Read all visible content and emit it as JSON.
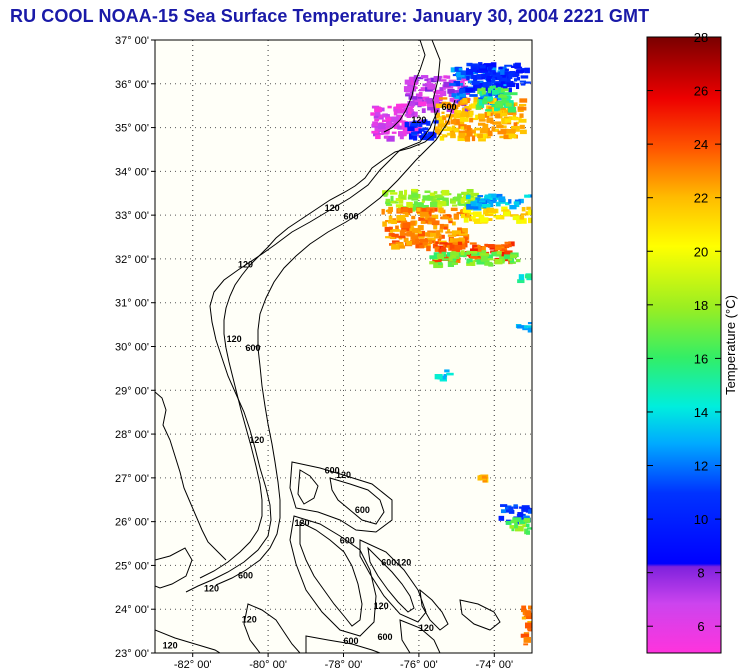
{
  "title": "RU COOL  NOAA-15  Sea Surface Temperature:  January 30, 2004 2221 GMT",
  "map": {
    "lat_range": [
      23,
      37
    ],
    "lon_range": [
      -83,
      -73
    ],
    "lat_labels": [
      "23° 00'",
      "24° 00'",
      "25° 00'",
      "26° 00'",
      "27° 00'",
      "28° 00'",
      "29° 00'",
      "30° 00'",
      "31° 00'",
      "32° 00'",
      "33° 00'",
      "34° 00'",
      "35° 00'",
      "36° 00'",
      "37° 00'"
    ],
    "lon_labels": [
      "-82° 00'",
      "-80° 00'",
      "-78° 00'",
      "-76° 00'",
      "-74° 00'"
    ],
    "lon_values": [
      -82,
      -80,
      -78,
      -76,
      -74
    ],
    "isobath_labels": [
      {
        "text": "120",
        "lon": -80.6,
        "lat": 31.8
      },
      {
        "text": "120",
        "lon": -78.3,
        "lat": 33.1
      },
      {
        "text": "600",
        "lon": -77.8,
        "lat": 32.9
      },
      {
        "text": "120",
        "lon": -80.9,
        "lat": 30.1
      },
      {
        "text": "600",
        "lon": -80.4,
        "lat": 29.9
      },
      {
        "text": "120",
        "lon": -80.3,
        "lat": 27.8
      },
      {
        "text": "600",
        "lon": -78.3,
        "lat": 27.1
      },
      {
        "text": "120",
        "lon": -78.0,
        "lat": 27.0
      },
      {
        "text": "600",
        "lon": -77.5,
        "lat": 26.2
      },
      {
        "text": "120",
        "lon": -79.1,
        "lat": 25.9
      },
      {
        "text": "600",
        "lon": -77.9,
        "lat": 25.5
      },
      {
        "text": "600",
        "lon": -76.8,
        "lat": 25.0
      },
      {
        "text": "120",
        "lon": -76.4,
        "lat": 25.0
      },
      {
        "text": "600",
        "lon": -80.6,
        "lat": 24.7
      },
      {
        "text": "120",
        "lon": -81.5,
        "lat": 24.4
      },
      {
        "text": "120",
        "lon": -77.0,
        "lat": 24.0
      },
      {
        "text": "120",
        "lon": -80.5,
        "lat": 23.7
      },
      {
        "text": "600",
        "lon": -77.8,
        "lat": 23.2
      },
      {
        "text": "600",
        "lon": -76.9,
        "lat": 23.3
      },
      {
        "text": "120",
        "lon": -75.8,
        "lat": 23.5
      },
      {
        "text": "120",
        "lon": -82.6,
        "lat": 23.1
      },
      {
        "text": "120",
        "lon": -76.0,
        "lat": 35.1
      },
      {
        "text": "600",
        "lon": -75.2,
        "lat": 35.4
      }
    ],
    "sst_patches": [
      {
        "lon1": -76.4,
        "lat1": 36.2,
        "lon2": -74.8,
        "lat2": 35.4,
        "temp": 7
      },
      {
        "lon1": -75.2,
        "lat1": 36.4,
        "lon2": -73.8,
        "lat2": 35.6,
        "temp": 12
      },
      {
        "lon1": -74.8,
        "lat1": 36.5,
        "lon2": -73.2,
        "lat2": 35.9,
        "temp": 10
      },
      {
        "lon1": -75.6,
        "lat1": 35.7,
        "lon2": -73.3,
        "lat2": 34.8,
        "temp": 22
      },
      {
        "lon1": -77.3,
        "lat1": 35.6,
        "lon2": -76.0,
        "lat2": 34.8,
        "temp": 6
      },
      {
        "lon1": -76.4,
        "lat1": 35.2,
        "lon2": -75.6,
        "lat2": 34.8,
        "temp": 10
      },
      {
        "lon1": -74.5,
        "lat1": 36.0,
        "lon2": -73.6,
        "lat2": 35.4,
        "temp": 16
      },
      {
        "lon1": -77.0,
        "lat1": 33.6,
        "lon2": -74.5,
        "lat2": 33.2,
        "temp": 18
      },
      {
        "lon1": -77.0,
        "lat1": 33.2,
        "lon2": -74.8,
        "lat2": 32.3,
        "temp": 23
      },
      {
        "lon1": -74.9,
        "lat1": 33.2,
        "lon2": -73.1,
        "lat2": 32.9,
        "temp": 21
      },
      {
        "lon1": -74.8,
        "lat1": 33.5,
        "lon2": -73.1,
        "lat2": 33.2,
        "temp": 13
      },
      {
        "lon1": -75.7,
        "lat1": 32.4,
        "lon2": -73.6,
        "lat2": 32.0,
        "temp": 24
      },
      {
        "lon1": -75.8,
        "lat1": 32.2,
        "lon2": -73.4,
        "lat2": 31.9,
        "temp": 17
      },
      {
        "lon1": -73.4,
        "lat1": 31.7,
        "lon2": -73.1,
        "lat2": 31.5,
        "temp": 15
      },
      {
        "lon1": -73.5,
        "lat1": 30.6,
        "lon2": -73.1,
        "lat2": 30.4,
        "temp": 13
      },
      {
        "lon1": -75.6,
        "lat1": 29.5,
        "lon2": -75.2,
        "lat2": 29.3,
        "temp": 14
      },
      {
        "lon1": -73.9,
        "lat1": 26.4,
        "lon2": -73.1,
        "lat2": 26.0,
        "temp": 11
      },
      {
        "lon1": -73.7,
        "lat1": 26.1,
        "lon2": -73.1,
        "lat2": 25.8,
        "temp": 17
      },
      {
        "lon1": -73.3,
        "lat1": 24.1,
        "lon2": -73.1,
        "lat2": 23.1,
        "temp": 23
      },
      {
        "lon1": -74.5,
        "lat1": 27.1,
        "lon2": -74.3,
        "lat2": 26.9,
        "temp": 22
      }
    ]
  },
  "colorbar": {
    "label": "Temperature (°C)",
    "min": 5,
    "max": 28,
    "ticks": [
      "6",
      "8",
      "10",
      "12",
      "14",
      "16",
      "18",
      "20",
      "22",
      "24",
      "26",
      "28"
    ],
    "tick_values": [
      6,
      8,
      10,
      12,
      14,
      16,
      18,
      20,
      22,
      24,
      26,
      28
    ]
  }
}
